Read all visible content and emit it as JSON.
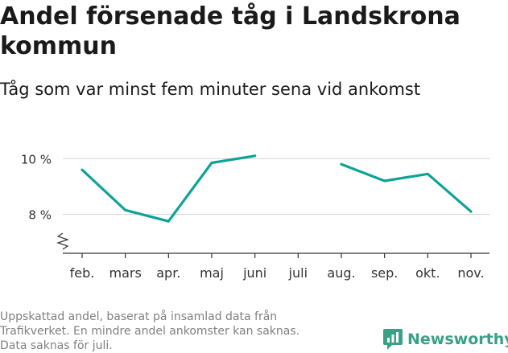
{
  "title": "Andel försenade tåg i Landskrona kommun",
  "subtitle": "Tåg som var minst fem minuter sena vid ankomst",
  "footer": [
    "Uppskattad andel, baserat på insamlad data från",
    "Trafikverket. En mindre andel ankomster kan saknas.",
    "Data saknas för juli."
  ],
  "brand": "Newsworthy",
  "colors": {
    "line": "#0fa397",
    "grid": "#d9d9d9",
    "brand": "#3aa189"
  },
  "chart_data": {
    "type": "line",
    "title": "Andel försenade tåg i Landskrona kommun",
    "subtitle": "Tåg som var minst fem minuter sena vid ankomst",
    "categories": [
      "feb.",
      "mars",
      "apr.",
      "maj",
      "juni",
      "juli",
      "aug.",
      "sep.",
      "okt.",
      "nov."
    ],
    "series": [
      {
        "values": [
          9.6,
          8.15,
          7.75,
          9.85,
          10.1,
          null,
          9.8,
          9.2,
          9.45,
          8.1
        ]
      }
    ],
    "yticks": [
      8,
      10
    ],
    "ytick_labels": [
      "8 %",
      "10 %"
    ],
    "ylim": [
      6.6,
      10.5
    ],
    "axis_break": true,
    "grid": true,
    "legend": "none"
  }
}
